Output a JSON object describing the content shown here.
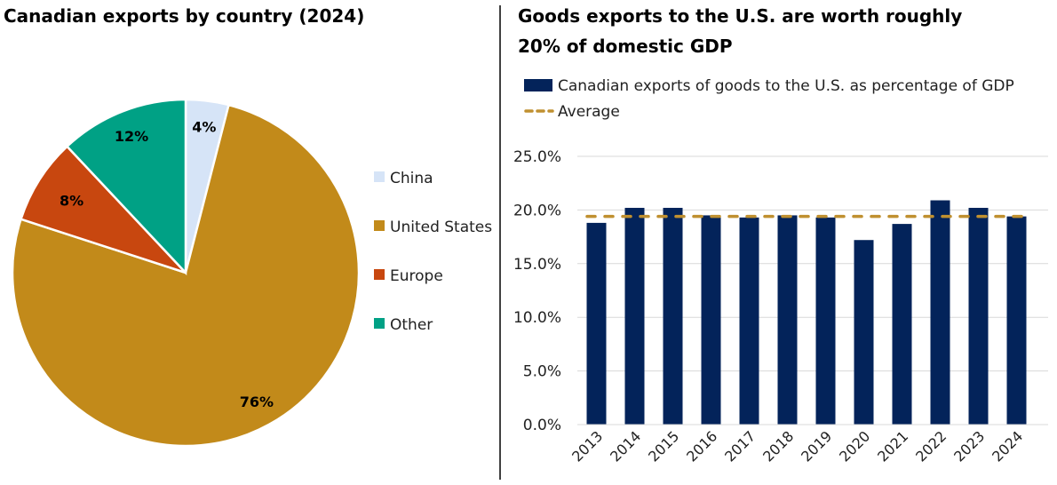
{
  "chart_data": [
    {
      "type": "pie",
      "title": "Canadian exports by country (2024)",
      "slices": [
        {
          "label": "China",
          "value": 4,
          "data_label": "4%",
          "color": "#d6e4f7"
        },
        {
          "label": "United States",
          "value": 76,
          "data_label": "76%",
          "color": "#c28a1a"
        },
        {
          "label": "Europe",
          "value": 8,
          "data_label": "8%",
          "color": "#c8470f"
        },
        {
          "label": "Other",
          "value": 12,
          "data_label": "12%",
          "color": "#00a185"
        }
      ],
      "legend": "right"
    },
    {
      "type": "bar",
      "title": "Goods exports to the U.S. are worth roughly 20% of domestic GDP",
      "title_lines": [
        "Goods exports to the U.S. are worth roughly",
        "20% of domestic GDP"
      ],
      "categories": [
        "2013",
        "2014",
        "2015",
        "2016",
        "2017",
        "2018",
        "2019",
        "2020",
        "2021",
        "2022",
        "2023",
        "2024"
      ],
      "series": [
        {
          "name": "Canadian exports of goods to the U.S. as percentage of GDP",
          "type": "bar",
          "color": "#03235a",
          "values": [
            18.8,
            20.2,
            20.2,
            19.5,
            19.3,
            19.5,
            19.3,
            17.2,
            18.7,
            20.9,
            20.2,
            19.4
          ]
        },
        {
          "name": "Average",
          "type": "dashed-line",
          "color": "#c09030",
          "value": 19.4
        }
      ],
      "ylim": [
        0,
        25
      ],
      "yticks": [
        "0.0%",
        "5.0%",
        "10.0%",
        "15.0%",
        "20.0%",
        "25.0%"
      ],
      "grid": true,
      "legend": "top-left"
    }
  ]
}
